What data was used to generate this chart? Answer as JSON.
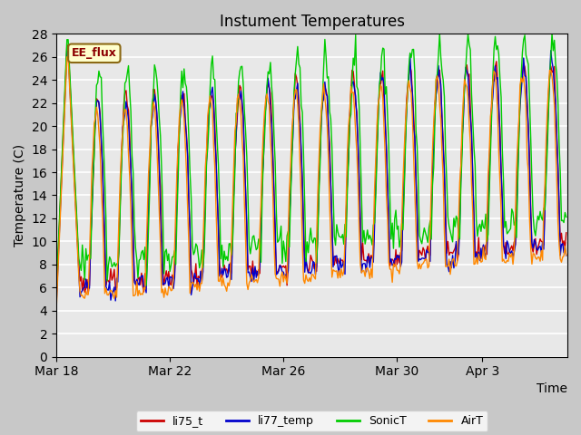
{
  "title": "Instument Temperatures",
  "xlabel": "Time",
  "ylabel": "Temperature (C)",
  "ylim": [
    0,
    28
  ],
  "yticks": [
    0,
    2,
    4,
    6,
    8,
    10,
    12,
    14,
    16,
    18,
    20,
    22,
    24,
    26,
    28
  ],
  "legend_labels": [
    "li75_t",
    "li77_temp",
    "SonicT",
    "AirT"
  ],
  "legend_colors": [
    "#cc0000",
    "#0000cc",
    "#00cc00",
    "#ff8800"
  ],
  "annotation_text": "EE_flux",
  "line_width": 1.0,
  "x_tick_labels": [
    "Mar 18",
    "Mar 22",
    "Mar 26",
    "Mar 30",
    "Apr 3"
  ],
  "x_tick_positions": [
    0,
    96,
    192,
    288,
    360
  ],
  "xlim": [
    0,
    432
  ]
}
